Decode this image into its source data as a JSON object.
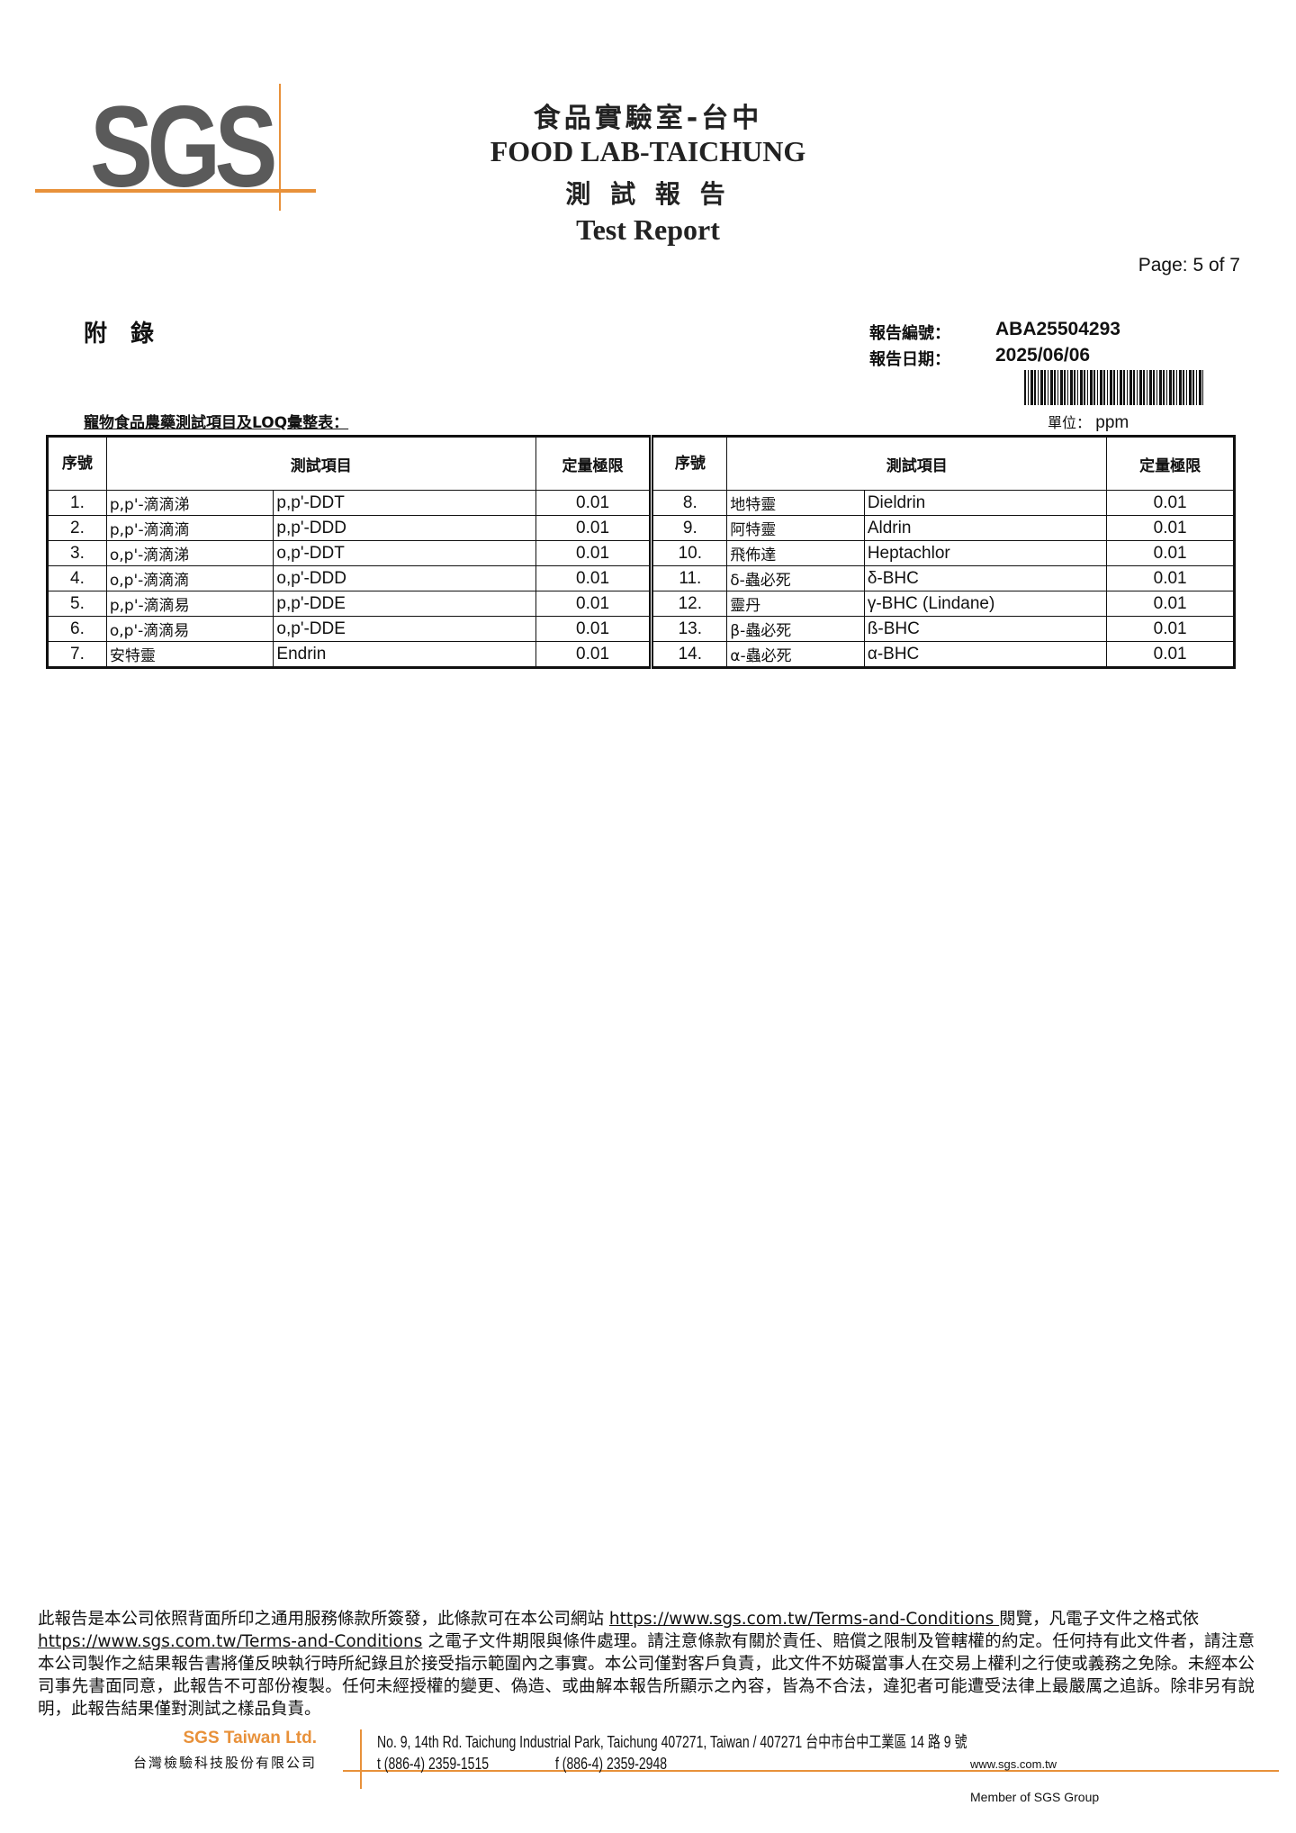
{
  "header": {
    "logo": "SGS",
    "lab_zh": "食品實驗室-台中",
    "lab_en": "FOOD LAB-TAICHUNG",
    "report_zh": "測 試 報 告",
    "report_en": "Test Report",
    "page": "Page: 5 of 7"
  },
  "meta": {
    "appendix": "附　錄",
    "report_no_label": "報告編號：",
    "report_no": "ABA25504293",
    "date_label": "報告日期：",
    "date": "2025/06/06",
    "table_title": "寵物食品農藥測試項目及LOQ彙整表：",
    "unit_label": "單位：",
    "unit": "ppm"
  },
  "table": {
    "headers": {
      "no": "序號",
      "item": "測試項目",
      "loq": "定量極限"
    },
    "rows": [
      [
        {
          "no": "1.",
          "zh": "p,p'-滴滴涕",
          "en": "p,p'-DDT",
          "loq": "0.01"
        },
        {
          "no": "8.",
          "zh": "地特靈",
          "en": "Dieldrin",
          "loq": "0.01"
        }
      ],
      [
        {
          "no": "2.",
          "zh": "p,p'-滴滴滴",
          "en": "p,p'-DDD",
          "loq": "0.01"
        },
        {
          "no": "9.",
          "zh": "阿特靈",
          "en": "Aldrin",
          "loq": "0.01"
        }
      ],
      [
        {
          "no": "3.",
          "zh": "o,p'-滴滴涕",
          "en": "o,p'-DDT",
          "loq": "0.01"
        },
        {
          "no": "10.",
          "zh": "飛佈達",
          "en": "Heptachlor",
          "loq": "0.01"
        }
      ],
      [
        {
          "no": "4.",
          "zh": "o,p'-滴滴滴",
          "en": "o,p'-DDD",
          "loq": "0.01"
        },
        {
          "no": "11.",
          "zh": "δ-蟲必死",
          "en": "δ-BHC",
          "loq": "0.01"
        }
      ],
      [
        {
          "no": "5.",
          "zh": "p,p'-滴滴易",
          "en": "p,p'-DDE",
          "loq": "0.01"
        },
        {
          "no": "12.",
          "zh": "靈丹",
          "en": "γ-BHC (Lindane)",
          "loq": "0.01"
        }
      ],
      [
        {
          "no": "6.",
          "zh": "o,p'-滴滴易",
          "en": "o,p'-DDE",
          "loq": "0.01"
        },
        {
          "no": "13.",
          "zh": "β-蟲必死",
          "en": "ß-BHC",
          "loq": "0.01"
        }
      ],
      [
        {
          "no": "7.",
          "zh": "安特靈",
          "en": "Endrin",
          "loq": "0.01"
        },
        {
          "no": "14.",
          "zh": "α-蟲必死",
          "en": "α-BHC",
          "loq": "0.01"
        }
      ]
    ]
  },
  "footer": {
    "p1": "此報告是本公司依照背面所印之通用服務條款所簽發，此條款可在本公司網站 ",
    "link1": "https://www.sgs.com.tw/Terms-and-Conditions ",
    "p2": "閱覽，凡電子文件之格式依",
    "link2": "https://www.sgs.com.tw/Terms-and-Conditions",
    "p3": " 之電子文件期限與條件處理。請注意條款有關於責任、賠償之限制及管轄權的約定。任何持有此文件者，請注意本公司製作之結果報告書將僅反映執行時所紀錄且於接受指示範圍內之事實。本公司僅對客戶負責，此文件不妨礙當事人在交易上權利之行使或義務之免除。未經本公司事先書面同意，此報告不可部份複製。任何未經授權的變更、偽造、或曲解本報告所顯示之內容，皆為不合法，違犯者可能遭受法律上最嚴厲之追訴。除非另有說明，此報告結果僅對測試之樣品負責。",
    "company_en": "SGS Taiwan Ltd.",
    "company_zh": "台灣檢驗科技股份有限公司",
    "address": "No. 9, 14th Rd. Taichung Industrial Park, Taichung 407271, Taiwan / 407271  台中市台中工業區 14 路 9 號",
    "tel": "t (886-4) 2359-1515",
    "fax": "f (886-4) 2359-2948",
    "web": "www.sgs.com.tw",
    "member": "Member of SGS Group"
  },
  "colors": {
    "accent": "#e8913a",
    "logo": "#5a5a5a"
  }
}
